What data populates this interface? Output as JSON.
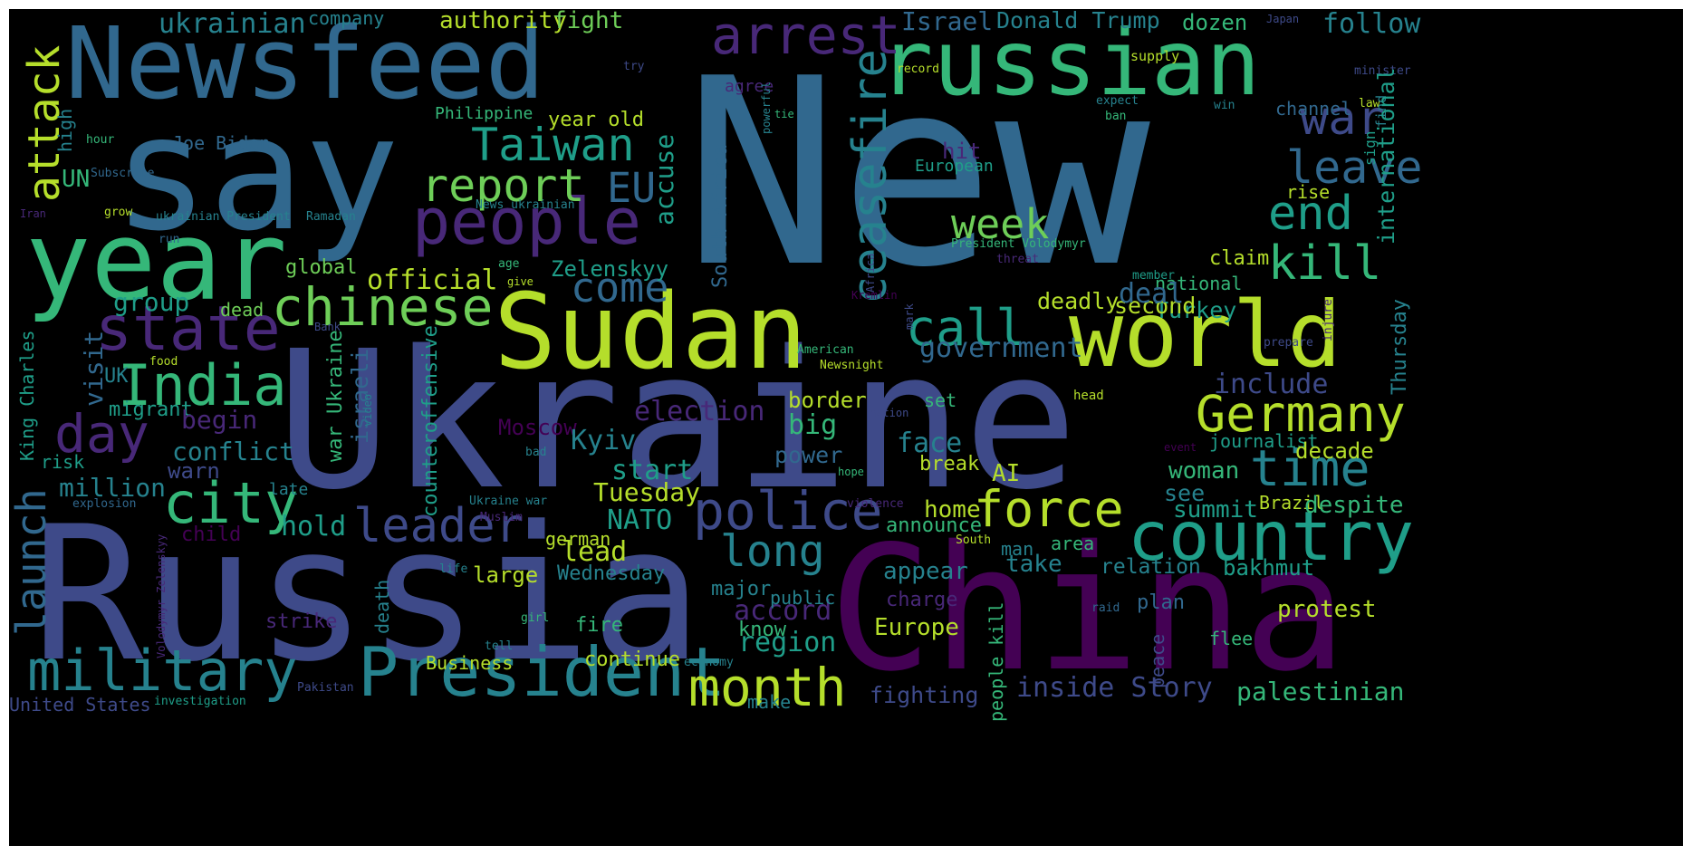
{
  "background": "#000000",
  "palette": [
    "#440154",
    "#482878",
    "#3e4a89",
    "#31688e",
    "#26828e",
    "#1f9e89",
    "#35b779",
    "#6ece58",
    "#b5de2b",
    "#fde725"
  ],
  "words": [
    "New",
    "Ukraine",
    "Russia",
    "China",
    "say",
    "Newsfeed",
    "year",
    "Sudan",
    "russian",
    "world",
    "country",
    "President",
    "people",
    "military",
    "city",
    "India",
    "state",
    "chinese",
    "arrest",
    "ceasefire",
    "police",
    "month",
    "leader",
    "Germany",
    "force",
    "time",
    "call",
    "attack",
    "day",
    "war",
    "end",
    "kill",
    "leave",
    "Taiwan",
    "report",
    "launch",
    "week",
    "come",
    "long",
    "EU",
    "follow",
    "ukrainian",
    "Israel",
    "Donald Trump",
    "authority",
    "fight",
    "company",
    "dozen",
    "Japan",
    "minister",
    "supply",
    "record",
    "try",
    "agree",
    "Philippine",
    "year old",
    "Joe Biden",
    "UN",
    "high",
    "hour",
    "Subscribe",
    "accuse",
    "South Africa",
    "hit",
    "European",
    "expect",
    "ban",
    "powerful",
    "tie",
    "win",
    "law",
    "find",
    "channel",
    "international",
    "sign",
    "rise",
    "Iran",
    "grow",
    "ukrainian President",
    "Ramadan",
    "run",
    "News ukrainian",
    "age",
    "give",
    "global",
    "official",
    "Zelenskyy",
    "group",
    "dead",
    "visit",
    "UK",
    "migrant",
    "begin",
    "conflict",
    "warn",
    "risk",
    "million",
    "hold",
    "King Charles",
    "explosion",
    "child",
    "late",
    "Muslim",
    "Ukraine war",
    "german",
    "Moscow",
    "Kyiv",
    "election",
    "border",
    "big",
    "power",
    "start",
    "Tuesday",
    "NATO",
    "lead",
    "large",
    "Wednesday",
    "counteroffensive",
    "israeli",
    "war Ukraine",
    "video",
    "food",
    "Bank",
    "American",
    "Kremlin",
    "Africa",
    "mark",
    "President Volodymyr",
    "threat",
    "member",
    "national",
    "claim",
    "Turkey",
    "second",
    "deadly",
    "deal",
    "government",
    "include",
    "Thursday",
    "Newsnight",
    "set",
    "nation",
    "head",
    "injure",
    "prepare",
    "journalist",
    "decade",
    "event",
    "hope",
    "AI",
    "break",
    "woman",
    "see",
    "summit",
    "Brazil",
    "despite",
    "home",
    "announce",
    "violence",
    "South",
    "man",
    "area",
    "take",
    "relation",
    "bakhmut",
    "appear",
    "charge",
    "accord",
    "region",
    "Europe",
    "major",
    "public",
    "know",
    "plan",
    "protest",
    "raid",
    "flee",
    "peace",
    "people kill",
    "palestinian",
    "inside Story",
    "fighting",
    "make",
    "continue",
    "economy",
    "Business",
    "strike",
    "fire",
    "death",
    "life",
    "girl",
    "tell",
    "Pakistan",
    "Volodymyr Zelenskyy",
    "investigation",
    "United States",
    "bad",
    "face"
  ]
}
